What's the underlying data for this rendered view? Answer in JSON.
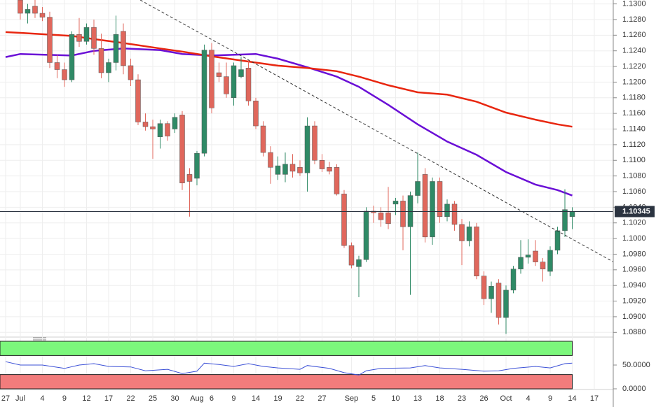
{
  "chart_data": [
    {
      "type": "candlestick",
      "x": [
        2,
        3,
        4,
        5,
        6,
        7,
        8,
        9,
        10,
        11,
        12,
        13,
        14,
        15,
        16,
        17,
        18,
        19,
        20,
        21,
        22,
        23,
        24,
        25,
        26,
        27,
        28,
        29,
        30,
        31,
        32,
        33,
        34,
        35,
        36,
        37,
        38,
        39,
        40,
        41,
        42,
        43,
        44,
        45,
        46,
        47,
        48,
        49,
        50,
        51,
        52,
        53,
        54,
        55,
        56,
        57,
        58,
        59,
        60,
        61,
        62,
        63,
        64,
        65,
        66,
        67,
        68,
        69,
        70,
        71,
        72,
        73,
        74,
        75,
        76,
        77
      ],
      "open": [
        1.1305,
        1.1288,
        1.1297,
        1.1288,
        1.1283,
        1.1225,
        1.1216,
        1.1203,
        1.1261,
        1.1252,
        1.127,
        1.1243,
        1.1212,
        1.1225,
        1.1265,
        1.1221,
        1.1203,
        1.1149,
        1.1143,
        1.113,
        1.1147,
        1.114,
        1.1158,
        1.1082,
        1.1077,
        1.1109,
        1.1241,
        1.1212,
        1.1207,
        1.118,
        1.1207,
        1.1218,
        1.1176,
        1.1144,
        1.111,
        1.1082,
        1.1082,
        1.1095,
        1.1091,
        1.1084,
        1.1144,
        1.11,
        1.1091,
        1.1091,
        1.1057,
        1.0991,
        1.0964,
        1.0973,
        1.1035,
        1.1033,
        1.1033,
        1.1044,
        1.1048,
        1.1015,
        1.1055,
        1.1082,
        1.1002,
        1.1073,
        1.1028,
        1.1044,
        1.1018,
        1.0997,
        1.1015,
        1.0952,
        1.0923,
        1.0943,
        1.0899,
        1.0934,
        1.0961,
        1.0976,
        1.0984,
        1.097,
        1.0958,
        1.0985,
        1.101,
        1.1028
      ],
      "high": [
        1.131,
        1.13,
        1.1305,
        1.1296,
        1.129,
        1.1235,
        1.1225,
        1.1265,
        1.1282,
        1.1275,
        1.128,
        1.1262,
        1.123,
        1.1285,
        1.1275,
        1.123,
        1.121,
        1.116,
        1.1152,
        1.1152,
        1.115,
        1.116,
        1.1163,
        1.109,
        1.1112,
        1.1248,
        1.125,
        1.1225,
        1.1225,
        1.1225,
        1.1232,
        1.1228,
        1.118,
        1.115,
        1.1118,
        1.1105,
        1.111,
        1.1108,
        1.11,
        1.1155,
        1.115,
        1.1108,
        1.1098,
        1.1095,
        1.1062,
        1.0995,
        1.0978,
        1.104,
        1.1042,
        1.104,
        1.1066,
        1.1052,
        1.1055,
        1.106,
        1.111,
        1.109,
        1.1078,
        1.1078,
        1.105,
        1.1048,
        1.1025,
        1.1022,
        1.102,
        1.0958,
        1.0945,
        1.0948,
        1.094,
        1.0965,
        1.0998,
        1.0999,
        1.0998,
        1.0975,
        1.099,
        1.1015,
        1.1063,
        1.104
      ],
      "low": [
        1.128,
        1.1275,
        1.1282,
        1.1278,
        1.1218,
        1.1205,
        1.1194,
        1.12,
        1.1245,
        1.1248,
        1.1235,
        1.1205,
        1.12,
        1.1215,
        1.121,
        1.1195,
        1.1145,
        1.1138,
        1.1102,
        1.1115,
        1.1125,
        1.1135,
        1.1062,
        1.1028,
        1.1068,
        1.1105,
        1.116,
        1.12,
        1.118,
        1.117,
        1.1205,
        1.117,
        1.114,
        1.1105,
        1.107,
        1.1075,
        1.1072,
        1.1078,
        1.108,
        1.106,
        1.1095,
        1.1085,
        1.1082,
        1.1055,
        1.0988,
        1.0962,
        1.0925,
        1.097,
        1.102,
        1.1015,
        1.1012,
        1.103,
        1.0985,
        1.0928,
        1.1045,
        1.0995,
        1.0992,
        1.102,
        1.1022,
        1.101,
        1.0966,
        1.099,
        1.0948,
        1.0915,
        1.0905,
        1.089,
        1.0878,
        1.093,
        1.0955,
        1.0968,
        1.0965,
        1.0945,
        1.0952,
        1.098,
        1.1002,
        1.1012
      ],
      "close": [
        1.1288,
        1.1293,
        1.1288,
        1.1283,
        1.1225,
        1.1216,
        1.1203,
        1.1261,
        1.1252,
        1.127,
        1.1243,
        1.1212,
        1.1225,
        1.1261,
        1.1221,
        1.1203,
        1.1149,
        1.1143,
        1.114,
        1.1147,
        1.1131,
        1.1155,
        1.1071,
        1.1073,
        1.1109,
        1.1241,
        1.1167,
        1.1207,
        1.1185,
        1.1221,
        1.1216,
        1.1176,
        1.1144,
        1.111,
        1.1091,
        1.1093,
        1.1095,
        1.1086,
        1.1084,
        1.1144,
        1.11,
        1.1089,
        1.1086,
        1.1057,
        1.0991,
        1.0966,
        1.0973,
        1.1035,
        1.1033,
        1.1024,
        1.1019,
        1.1048,
        1.1015,
        1.1055,
        1.1073,
        1.1002,
        1.1073,
        1.1028,
        1.1044,
        1.1018,
        1.0997,
        1.1015,
        1.0952,
        1.0923,
        1.0939,
        1.0899,
        1.0934,
        1.0961,
        1.0976,
        1.0979,
        1.097,
        1.0961,
        1.0985,
        1.101,
        1.1037,
        1.10345
      ],
      "up_color": "#2f8a66",
      "down_color": "#e0675c",
      "series": [
        {
          "color": "#6a0fd6",
          "x": [
            0,
            2,
            9,
            12,
            16,
            21,
            24,
            28,
            34,
            37,
            41,
            45,
            48,
            52,
            56,
            60,
            64,
            68,
            72,
            75,
            77
          ],
          "values": [
            1.1232,
            1.1236,
            1.1234,
            1.124,
            1.1243,
            1.1241,
            1.1236,
            1.1234,
            1.1236,
            1.123,
            1.1219,
            1.1207,
            1.1194,
            1.1171,
            1.1146,
            1.1124,
            1.1107,
            1.1085,
            1.1069,
            1.1062,
            1.1055
          ]
        },
        {
          "color": "#e8260f",
          "x": [
            0,
            2,
            9,
            12,
            16,
            21,
            24,
            28,
            34,
            37,
            41,
            45,
            48,
            52,
            56,
            60,
            64,
            68,
            72,
            75,
            77
          ],
          "values": [
            1.1264,
            1.1263,
            1.1259,
            1.1255,
            1.125,
            1.1243,
            1.1239,
            1.1233,
            1.1225,
            1.1221,
            1.1218,
            1.1214,
            1.1207,
            1.1196,
            1.1187,
            1.1184,
            1.1175,
            1.1161,
            1.1152,
            1.1146,
            1.1143
          ]
        }
      ],
      "trendline": {
        "x": [
          18.3,
          82.6
        ],
        "values": [
          1.1305,
          1.097
        ],
        "color": "#333333"
      },
      "last_price": 1.10345,
      "xlim": [
        -0.76,
        82.57
      ],
      "ylim": [
        1.0874,
        1.1305
      ],
      "yticks": [
        {
          "value": 1.088,
          "label": "1.0880"
        },
        {
          "value": 1.09,
          "label": "1.0900"
        },
        {
          "value": 1.092,
          "label": "1.0920"
        },
        {
          "value": 1.094,
          "label": "1.0940"
        },
        {
          "value": 1.096,
          "label": "1.0960"
        },
        {
          "value": 1.098,
          "label": "1.0980"
        },
        {
          "value": 1.1,
          "label": "1.1000"
        },
        {
          "value": 1.102,
          "label": "1.1020"
        },
        {
          "value": 1.104,
          "label": "1.1040"
        },
        {
          "value": 1.106,
          "label": "1.1060"
        },
        {
          "value": 1.108,
          "label": "1.1080"
        },
        {
          "value": 1.11,
          "label": "1.1100"
        },
        {
          "value": 1.112,
          "label": "1.1120"
        },
        {
          "value": 1.114,
          "label": "1.1140"
        },
        {
          "value": 1.116,
          "label": "1.1160"
        },
        {
          "value": 1.118,
          "label": "1.1180"
        },
        {
          "value": 1.12,
          "label": "1.1200"
        },
        {
          "value": 1.122,
          "label": "1.1220"
        },
        {
          "value": 1.124,
          "label": "1.1240"
        },
        {
          "value": 1.126,
          "label": "1.1260"
        },
        {
          "value": 1.128,
          "label": "1.1280"
        },
        {
          "value": 1.13,
          "label": "1.1300"
        }
      ],
      "xticks": [
        {
          "value": 0,
          "label": "27"
        },
        {
          "value": 2,
          "label": "Jul"
        },
        {
          "value": 5,
          "label": "4"
        },
        {
          "value": 8,
          "label": "9"
        },
        {
          "value": 11,
          "label": "12"
        },
        {
          "value": 14,
          "label": "17"
        },
        {
          "value": 17,
          "label": "22"
        },
        {
          "value": 20,
          "label": "25"
        },
        {
          "value": 23,
          "label": "30"
        },
        {
          "value": 26,
          "label": "Aug"
        },
        {
          "value": 28,
          "label": "6"
        },
        {
          "value": 31,
          "label": "9"
        },
        {
          "value": 34,
          "label": "14"
        },
        {
          "value": 37,
          "label": "19"
        },
        {
          "value": 40,
          "label": "22"
        },
        {
          "value": 43,
          "label": "27"
        },
        {
          "value": 47,
          "label": "Sep"
        },
        {
          "value": 50,
          "label": "5"
        },
        {
          "value": 53,
          "label": "10"
        },
        {
          "value": 56,
          "label": "13"
        },
        {
          "value": 59,
          "label": "18"
        },
        {
          "value": 62,
          "label": "23"
        },
        {
          "value": 65,
          "label": "26"
        },
        {
          "value": 68,
          "label": "Oct"
        },
        {
          "value": 71,
          "label": "4"
        },
        {
          "value": 74,
          "label": "9"
        },
        {
          "value": 77,
          "label": "14"
        },
        {
          "value": 80,
          "label": "17"
        }
      ],
      "grid": true
    },
    {
      "type": "line",
      "x": [
        0,
        2,
        5,
        8,
        10,
        12,
        14,
        17,
        19,
        22,
        24,
        26,
        27,
        29,
        31,
        33,
        35,
        37,
        40,
        41,
        44,
        46,
        48,
        49,
        51,
        55,
        57,
        59,
        62,
        65,
        67,
        69,
        72,
        74,
        76,
        77
      ],
      "values": [
        57,
        50,
        50,
        43,
        50,
        53,
        47,
        46,
        38,
        41,
        32,
        37,
        54,
        51,
        47,
        53,
        47,
        44,
        41,
        49,
        43,
        34,
        29,
        38,
        43,
        44,
        49,
        44,
        41,
        37,
        38,
        43,
        47,
        44,
        53,
        54
      ],
      "color": "#3a4fd6",
      "bands": [
        {
          "range": [
            70,
            100
          ],
          "color": "#7cf77c"
        },
        {
          "range": [
            0,
            30
          ],
          "color": "#f27c7c"
        }
      ],
      "xlim": [
        -0.76,
        82.57
      ],
      "ylim": [
        0,
        100
      ],
      "yticks": [
        {
          "value": 50,
          "label": "50.0000"
        },
        {
          "value": 0,
          "label": "0.0000"
        }
      ]
    }
  ]
}
